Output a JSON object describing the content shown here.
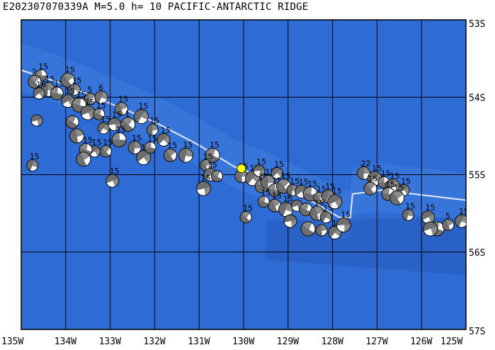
{
  "header": {
    "title": "E202307070339A M=5.0 h= 10 PACIFIC-ANTARCTIC RIDGE"
  },
  "map": {
    "lon_range": [
      -135,
      -125
    ],
    "lat_range": [
      -57,
      -53
    ],
    "lon_ticks": [
      {
        "value": -135,
        "label": "135W"
      },
      {
        "value": -134,
        "label": "134W"
      },
      {
        "value": -133,
        "label": "133W"
      },
      {
        "value": -132,
        "label": "132W"
      },
      {
        "value": -131,
        "label": "131W"
      },
      {
        "value": -130,
        "label": "130W"
      },
      {
        "value": -129,
        "label": "129W"
      },
      {
        "value": -128,
        "label": "128W"
      },
      {
        "value": -127,
        "label": "127W"
      },
      {
        "value": -126,
        "label": "126W"
      },
      {
        "value": -125,
        "label": "125W"
      }
    ],
    "lat_ticks": [
      {
        "value": -53,
        "label": "53S"
      },
      {
        "value": -54,
        "label": "54S"
      },
      {
        "value": -55,
        "label": "55S"
      },
      {
        "value": -56,
        "label": "56S"
      },
      {
        "value": -57,
        "label": "57S"
      }
    ],
    "colors": {
      "ocean": "#2e6bd4",
      "ocean_light": "#3f7de0",
      "ocean_dark": "#2558b8",
      "ridge": "#dfe7f5",
      "grid": "#000000",
      "event": "#ffff00",
      "beachball_dark": "#6e6e6e",
      "beachball_light": "#ffffff"
    },
    "event": {
      "lon": -130.05,
      "lat": -54.92
    },
    "ridge_line": [
      [
        -135,
        -53.65
      ],
      [
        -134.1,
        -53.82
      ],
      [
        -133,
        -54.08
      ],
      [
        -132,
        -54.32
      ],
      [
        -131,
        -54.62
      ],
      [
        -130.2,
        -54.9
      ],
      [
        -129.5,
        -55.05
      ],
      [
        -128.6,
        -55.3
      ],
      [
        -127.85,
        -55.55
      ],
      [
        -127.6,
        -55.55
      ],
      [
        -127.55,
        -55.25
      ],
      [
        -126.9,
        -55.2
      ],
      [
        -125,
        -55.33
      ]
    ],
    "mechanisms": [
      {
        "lon": -134.55,
        "lat": -53.72,
        "depth": "15"
      },
      {
        "lon": -134.7,
        "lat": -53.8,
        "depth": "2"
      },
      {
        "lon": -134.4,
        "lat": -53.9,
        "depth": "15"
      },
      {
        "lon": -134.6,
        "lat": -53.95,
        "depth": "16"
      },
      {
        "lon": -134.2,
        "lat": -53.95,
        "depth": "15"
      },
      {
        "lon": -133.95,
        "lat": -53.78,
        "depth": "15"
      },
      {
        "lon": -133.8,
        "lat": -53.9,
        "depth": "15"
      },
      {
        "lon": -133.95,
        "lat": -54.05,
        "depth": "15"
      },
      {
        "lon": -133.7,
        "lat": -54.1,
        "depth": "15"
      },
      {
        "lon": -133.45,
        "lat": -54.02,
        "depth": "5"
      },
      {
        "lon": -133.2,
        "lat": -54.0,
        "depth": "6"
      },
      {
        "lon": -133.5,
        "lat": -54.2,
        "depth": "15"
      },
      {
        "lon": -133.25,
        "lat": -54.22,
        "depth": "15"
      },
      {
        "lon": -132.75,
        "lat": -54.15,
        "depth": "15"
      },
      {
        "lon": -132.3,
        "lat": -54.25,
        "depth": "15"
      },
      {
        "lon": -134.65,
        "lat": -54.3,
        "depth": ""
      },
      {
        "lon": -133.85,
        "lat": -54.32,
        "depth": ""
      },
      {
        "lon": -133.75,
        "lat": -54.5,
        "depth": ""
      },
      {
        "lon": -133.15,
        "lat": -54.4,
        "depth": "15"
      },
      {
        "lon": -132.9,
        "lat": -54.35,
        "depth": "15"
      },
      {
        "lon": -132.6,
        "lat": -54.35,
        "depth": "1"
      },
      {
        "lon": -132.05,
        "lat": -54.42,
        "depth": "15"
      },
      {
        "lon": -131.8,
        "lat": -54.55,
        "depth": "15"
      },
      {
        "lon": -132.8,
        "lat": -54.55,
        "depth": "15"
      },
      {
        "lon": -133.1,
        "lat": -54.7,
        "depth": "15"
      },
      {
        "lon": -132.45,
        "lat": -54.65,
        "depth": "15"
      },
      {
        "lon": -132.25,
        "lat": -54.78,
        "depth": "15"
      },
      {
        "lon": -132.1,
        "lat": -54.65,
        "depth": "15"
      },
      {
        "lon": -131.65,
        "lat": -54.75,
        "depth": "15"
      },
      {
        "lon": -131.3,
        "lat": -54.75,
        "depth": "15"
      },
      {
        "lon": -133.35,
        "lat": -54.7,
        "depth": "15"
      },
      {
        "lon": -133.55,
        "lat": -54.68,
        "depth": "15"
      },
      {
        "lon": -133.6,
        "lat": -54.8,
        "depth": ""
      },
      {
        "lon": -134.75,
        "lat": -54.88,
        "depth": "15"
      },
      {
        "lon": -132.95,
        "lat": -55.08,
        "depth": "15"
      },
      {
        "lon": -130.7,
        "lat": -54.75,
        "depth": "15"
      },
      {
        "lon": -130.85,
        "lat": -54.88,
        "depth": "15"
      },
      {
        "lon": -130.75,
        "lat": -55.0,
        "depth": "15"
      },
      {
        "lon": -130.9,
        "lat": -55.18,
        "depth": "15"
      },
      {
        "lon": -130.6,
        "lat": -55.02,
        "depth": ""
      },
      {
        "lon": -130.05,
        "lat": -55.02,
        "depth": "15"
      },
      {
        "lon": -129.8,
        "lat": -55.05,
        "depth": "15"
      },
      {
        "lon": -129.65,
        "lat": -54.95,
        "depth": "15"
      },
      {
        "lon": -129.6,
        "lat": -55.15,
        "depth": "15"
      },
      {
        "lon": -129.45,
        "lat": -55.1,
        "depth": "15"
      },
      {
        "lon": -129.25,
        "lat": -54.98,
        "depth": "15"
      },
      {
        "lon": -129.3,
        "lat": -55.2,
        "depth": "15"
      },
      {
        "lon": -129.1,
        "lat": -55.15,
        "depth": "15"
      },
      {
        "lon": -128.9,
        "lat": -55.2,
        "depth": "15"
      },
      {
        "lon": -128.7,
        "lat": -55.22,
        "depth": "15"
      },
      {
        "lon": -128.5,
        "lat": -55.25,
        "depth": "15"
      },
      {
        "lon": -128.3,
        "lat": -55.3,
        "depth": "15"
      },
      {
        "lon": -128.1,
        "lat": -55.28,
        "depth": "15"
      },
      {
        "lon": -127.95,
        "lat": -55.35,
        "depth": "15"
      },
      {
        "lon": -129.55,
        "lat": -55.35,
        "depth": "15"
      },
      {
        "lon": -129.3,
        "lat": -55.4,
        "depth": "15"
      },
      {
        "lon": -129.05,
        "lat": -55.45,
        "depth": "15"
      },
      {
        "lon": -128.8,
        "lat": -55.4,
        "depth": ""
      },
      {
        "lon": -128.6,
        "lat": -55.45,
        "depth": ""
      },
      {
        "lon": -128.35,
        "lat": -55.5,
        "depth": "15"
      },
      {
        "lon": -128.15,
        "lat": -55.55,
        "depth": "15"
      },
      {
        "lon": -128.95,
        "lat": -55.6,
        "depth": ""
      },
      {
        "lon": -128.55,
        "lat": -55.7,
        "depth": ""
      },
      {
        "lon": -128.25,
        "lat": -55.72,
        "depth": ""
      },
      {
        "lon": -127.95,
        "lat": -55.75,
        "depth": "15"
      },
      {
        "lon": -127.75,
        "lat": -55.65,
        "depth": "15"
      },
      {
        "lon": -129.95,
        "lat": -55.55,
        "depth": "15"
      },
      {
        "lon": -127.3,
        "lat": -54.98,
        "depth": "22"
      },
      {
        "lon": -127.05,
        "lat": -55.05,
        "depth": "15"
      },
      {
        "lon": -126.85,
        "lat": -55.1,
        "depth": "15"
      },
      {
        "lon": -127.15,
        "lat": -55.18,
        "depth": "15"
      },
      {
        "lon": -126.65,
        "lat": -55.15,
        "depth": "15"
      },
      {
        "lon": -126.4,
        "lat": -55.2,
        "depth": "15"
      },
      {
        "lon": -126.75,
        "lat": -55.25,
        "depth": "15"
      },
      {
        "lon": -126.55,
        "lat": -55.3,
        "depth": "15"
      },
      {
        "lon": -126.3,
        "lat": -55.52,
        "depth": "15"
      },
      {
        "lon": -125.85,
        "lat": -55.55,
        "depth": "15"
      },
      {
        "lon": -125.65,
        "lat": -55.7,
        "depth": ""
      },
      {
        "lon": -125.4,
        "lat": -55.65,
        "depth": "5"
      },
      {
        "lon": -125.1,
        "lat": -55.6,
        "depth": "15"
      },
      {
        "lon": -125.8,
        "lat": -55.7,
        "depth": ""
      }
    ]
  }
}
